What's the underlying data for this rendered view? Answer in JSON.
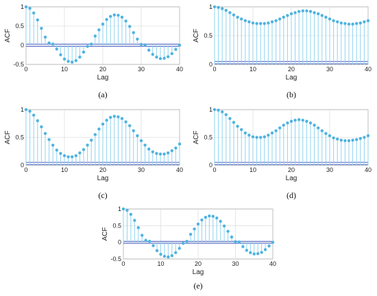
{
  "style": {
    "stem_color": "#8fd3ee",
    "marker_color": "#4fb3e0",
    "bound_color": "#4057c0",
    "grid_color": "#d4d4d4"
  },
  "chart_data": [
    {
      "type": "stem",
      "caption": "(a)",
      "xlabel": "Lag",
      "ylabel": "ACF",
      "xlim": [
        0,
        40
      ],
      "ylim": [
        -0.5,
        1
      ],
      "xticks": [
        "0",
        "10",
        "20",
        "30",
        "40"
      ],
      "yticks": [
        "-0.5",
        "0",
        "0.5",
        "1"
      ],
      "grid": true,
      "confidence_bounds": [
        0.03,
        -0.03
      ],
      "x": [
        0,
        1,
        2,
        3,
        4,
        5,
        6,
        7,
        8,
        9,
        10,
        11,
        12,
        13,
        14,
        15,
        16,
        17,
        18,
        19,
        20,
        21,
        22,
        23,
        24,
        25,
        26,
        27,
        28,
        29,
        30,
        31,
        32,
        33,
        34,
        35,
        36,
        37,
        38,
        39,
        40
      ],
      "values": [
        1.0,
        0.96,
        0.84,
        0.66,
        0.44,
        0.21,
        0.06,
        0.03,
        -0.1,
        -0.25,
        -0.36,
        -0.42,
        -0.44,
        -0.4,
        -0.31,
        -0.18,
        -0.03,
        0.03,
        0.24,
        0.4,
        0.55,
        0.67,
        0.75,
        0.79,
        0.78,
        0.73,
        0.63,
        0.49,
        0.33,
        0.16,
        0.02,
        0.01,
        -0.13,
        -0.24,
        -0.31,
        -0.35,
        -0.34,
        -0.3,
        -0.22,
        -0.11,
        0.0
      ]
    },
    {
      "type": "stem",
      "caption": "(b)",
      "xlabel": "Lag",
      "ylabel": "ACF",
      "xlim": [
        0,
        40
      ],
      "ylim": [
        0,
        1
      ],
      "xticks": [
        "0",
        "10",
        "20",
        "30",
        "40"
      ],
      "yticks": [
        "0",
        "0.5",
        "1"
      ],
      "grid": true,
      "confidence_bounds": [
        0.05,
        0.01
      ],
      "x": [
        0,
        1,
        2,
        3,
        4,
        5,
        6,
        7,
        8,
        9,
        10,
        11,
        12,
        13,
        14,
        15,
        16,
        17,
        18,
        19,
        20,
        21,
        22,
        23,
        24,
        25,
        26,
        27,
        28,
        29,
        30,
        31,
        32,
        33,
        34,
        35,
        36,
        37,
        38,
        39,
        40
      ],
      "values": [
        1.0,
        0.99,
        0.97,
        0.94,
        0.9,
        0.86,
        0.82,
        0.79,
        0.76,
        0.74,
        0.72,
        0.71,
        0.71,
        0.71,
        0.72,
        0.74,
        0.76,
        0.79,
        0.82,
        0.85,
        0.88,
        0.9,
        0.92,
        0.93,
        0.93,
        0.92,
        0.9,
        0.88,
        0.85,
        0.82,
        0.79,
        0.76,
        0.74,
        0.72,
        0.71,
        0.7,
        0.7,
        0.71,
        0.72,
        0.74,
        0.76
      ]
    },
    {
      "type": "stem",
      "caption": "(c)",
      "xlabel": "Lag",
      "ylabel": "ACF",
      "xlim": [
        0,
        40
      ],
      "ylim": [
        0,
        1
      ],
      "xticks": [
        "0",
        "10",
        "20",
        "30",
        "40"
      ],
      "yticks": [
        "0",
        "0.5",
        "1"
      ],
      "grid": true,
      "confidence_bounds": [
        0.05,
        0.01
      ],
      "x": [
        0,
        1,
        2,
        3,
        4,
        5,
        6,
        7,
        8,
        9,
        10,
        11,
        12,
        13,
        14,
        15,
        16,
        17,
        18,
        19,
        20,
        21,
        22,
        23,
        24,
        25,
        26,
        27,
        28,
        29,
        30,
        31,
        32,
        33,
        34,
        35,
        36,
        37,
        38,
        39,
        40
      ],
      "values": [
        1.0,
        0.97,
        0.9,
        0.8,
        0.69,
        0.57,
        0.46,
        0.36,
        0.27,
        0.21,
        0.17,
        0.15,
        0.15,
        0.17,
        0.22,
        0.28,
        0.36,
        0.45,
        0.55,
        0.65,
        0.74,
        0.81,
        0.86,
        0.88,
        0.87,
        0.84,
        0.78,
        0.71,
        0.62,
        0.53,
        0.44,
        0.36,
        0.29,
        0.24,
        0.21,
        0.2,
        0.2,
        0.22,
        0.26,
        0.31,
        0.38
      ]
    },
    {
      "type": "stem",
      "caption": "(d)",
      "xlabel": "Lag",
      "ylabel": "ACF",
      "xlim": [
        0,
        40
      ],
      "ylim": [
        0,
        1
      ],
      "xticks": [
        "0",
        "10",
        "20",
        "30",
        "40"
      ],
      "yticks": [
        "0",
        "0.5",
        "1"
      ],
      "grid": true,
      "confidence_bounds": [
        0.05,
        0.01
      ],
      "x": [
        0,
        1,
        2,
        3,
        4,
        5,
        6,
        7,
        8,
        9,
        10,
        11,
        12,
        13,
        14,
        15,
        16,
        17,
        18,
        19,
        20,
        21,
        22,
        23,
        24,
        25,
        26,
        27,
        28,
        29,
        30,
        31,
        32,
        33,
        34,
        35,
        36,
        37,
        38,
        39,
        40
      ],
      "values": [
        1.0,
        0.99,
        0.96,
        0.91,
        0.84,
        0.77,
        0.7,
        0.64,
        0.58,
        0.54,
        0.51,
        0.5,
        0.5,
        0.51,
        0.54,
        0.58,
        0.62,
        0.67,
        0.72,
        0.76,
        0.79,
        0.81,
        0.82,
        0.81,
        0.79,
        0.76,
        0.72,
        0.67,
        0.62,
        0.57,
        0.53,
        0.49,
        0.47,
        0.45,
        0.44,
        0.44,
        0.45,
        0.46,
        0.48,
        0.5,
        0.53
      ]
    },
    {
      "type": "stem",
      "caption": "(e)",
      "xlabel": "Lag",
      "ylabel": "ACF",
      "xlim": [
        0,
        40
      ],
      "ylim": [
        -0.5,
        1
      ],
      "xticks": [
        "0",
        "10",
        "20",
        "30",
        "40"
      ],
      "yticks": [
        "-0.5",
        "0",
        "0.5",
        "1"
      ],
      "grid": true,
      "confidence_bounds": [
        0.03,
        -0.03
      ],
      "x": [
        0,
        1,
        2,
        3,
        4,
        5,
        6,
        7,
        8,
        9,
        10,
        11,
        12,
        13,
        14,
        15,
        16,
        17,
        18,
        19,
        20,
        21,
        22,
        23,
        24,
        25,
        26,
        27,
        28,
        29,
        30,
        31,
        32,
        33,
        34,
        35,
        36,
        37,
        38,
        39,
        40
      ],
      "values": [
        1.0,
        0.96,
        0.84,
        0.66,
        0.44,
        0.21,
        0.06,
        0.03,
        -0.1,
        -0.25,
        -0.36,
        -0.42,
        -0.44,
        -0.4,
        -0.31,
        -0.18,
        -0.03,
        0.03,
        0.24,
        0.4,
        0.55,
        0.67,
        0.75,
        0.79,
        0.78,
        0.73,
        0.63,
        0.49,
        0.33,
        0.16,
        0.02,
        0.01,
        -0.13,
        -0.24,
        -0.31,
        -0.35,
        -0.34,
        -0.3,
        -0.22,
        -0.11,
        0.0
      ]
    }
  ]
}
